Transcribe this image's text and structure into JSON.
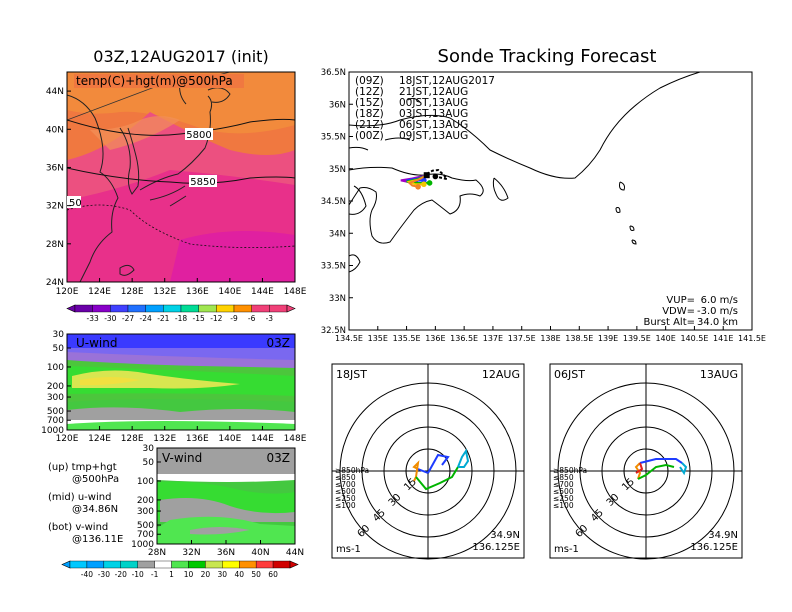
{
  "left": {
    "title": "03Z,12AUG2017 (init)",
    "map": {
      "label": "temp(C)+hgt(m)@500hPa",
      "xticks": [
        "120E",
        "124E",
        "128E",
        "132E",
        "136E",
        "140E",
        "144E",
        "148E"
      ],
      "yticks": [
        "44N",
        "40N",
        "36N",
        "32N",
        "28N",
        "24N"
      ],
      "contours": [
        "5800",
        "5850",
        "50"
      ],
      "colorbar": [
        "-33",
        "-30",
        "-27",
        "-24",
        "-21",
        "-18",
        "-15",
        "-12",
        "-9",
        "-6",
        "-3"
      ]
    },
    "uwind": {
      "label": "U-wind",
      "time": "03Z",
      "yticks": [
        "30",
        "50",
        "100",
        "200",
        "300",
        "500",
        "700",
        "1000"
      ],
      "xticks": [
        "120E",
        "124E",
        "128E",
        "132E",
        "136E",
        "140E",
        "144E",
        "148E"
      ]
    },
    "vwind": {
      "label": "V-wind",
      "time": "03Z",
      "yticks": [
        "30",
        "50",
        "100",
        "200",
        "300",
        "500",
        "700",
        "1000"
      ],
      "xticks": [
        "28N",
        "32N",
        "36N",
        "40N",
        "44N"
      ]
    },
    "notes": [
      {
        "tag": "(up)",
        "line1": "tmp+hgt",
        "line2": "@500hPa"
      },
      {
        "tag": "(mid)",
        "line1": "u-wind",
        "line2": "@34.86N"
      },
      {
        "tag": "(bot)",
        "line1": "v-wind",
        "line2": "@136.11E"
      }
    ],
    "windbar": [
      "-40",
      "-30",
      "-20",
      "-10",
      "-1",
      "1",
      "10",
      "20",
      "30",
      "40",
      "50",
      "60"
    ]
  },
  "right": {
    "title": "Sonde Tracking Forecast",
    "map": {
      "yticks": [
        "36.5N",
        "36N",
        "35.5N",
        "35N",
        "34.5N",
        "34N",
        "33.5N",
        "33N",
        "32.5N"
      ],
      "xticks": [
        "134.5E",
        "135E",
        "135.5E",
        "136E",
        "136.5E",
        "137E",
        "137.5E",
        "138E",
        "138.5E",
        "139E",
        "139.5E",
        "140E",
        "140.5E",
        "141E",
        "141.5E"
      ],
      "legend": [
        {
          "code": "(09Z)",
          "time": "18JST,12AUG2017",
          "color": "#000000"
        },
        {
          "code": "(12Z)",
          "time": "21JST,12AUG",
          "color": "#a000c8"
        },
        {
          "code": "(15Z)",
          "time": "00JST,13AUG",
          "color": "#1e3cff"
        },
        {
          "code": "(18Z)",
          "time": "03JST,13AUG",
          "color": "#00b400"
        },
        {
          "code": "(21Z)",
          "time": "06JST,13AUG",
          "color": "#f0c800"
        },
        {
          "code": "(00Z)",
          "time": "09JST,13AUG",
          "color": "#f08228"
        }
      ],
      "params": [
        {
          "label": "VUP=",
          "value": "6.0 m/s"
        },
        {
          "label": "VDW=",
          "value": "-3.0 m/s"
        },
        {
          "label": "Burst Alt=",
          "value": "34.0 km"
        }
      ]
    },
    "hodo1": {
      "left": "18JST",
      "right": "12AUG",
      "rings": [
        "15",
        "30",
        "45",
        "60"
      ],
      "unit": "ms-1",
      "lat": "34.9N",
      "lon": "136.125E",
      "levels": [
        "≥850hPa",
        "≤850",
        "≤700",
        "≤500",
        "≤250",
        "≤100"
      ]
    },
    "hodo2": {
      "left": "06JST",
      "right": "13AUG",
      "rings": [
        "15",
        "30",
        "45",
        "60"
      ],
      "unit": "ms-1",
      "lat": "34.9N",
      "lon": "136.125E",
      "levels": [
        "≥850hPa",
        "≤850",
        "≤700",
        "≤500",
        "≤250",
        "≤100"
      ]
    }
  },
  "colors": {
    "level_colors": [
      "#e02020",
      "#f08c00",
      "#c8b400",
      "#00b400",
      "#00aad2",
      "#1e3cff"
    ],
    "temp_scale": [
      "#6a00a8",
      "#8800c8",
      "#4040ff",
      "#2070ff",
      "#00a0ff",
      "#00d2e6",
      "#00dc96",
      "#a0e650",
      "#ffd200",
      "#ff9000",
      "#f04078"
    ],
    "wind_scale": [
      "#00a0ff",
      "#00d2e6",
      "#00d2c8",
      "#a0a0a0",
      "#ffffff",
      "#50e650",
      "#00c800",
      "#c8e650",
      "#ffff00",
      "#ff9000",
      "#ff3c3c",
      "#d00000"
    ]
  },
  "chart_data": [
    {
      "type": "heatmap",
      "title": "03Z,12AUG2017 (init)",
      "field": "temp(C)+hgt(m)@500hPa",
      "x_range": [
        "120E",
        "148E"
      ],
      "y_range": [
        "24N",
        "44N"
      ],
      "color_levels": [
        -33,
        -30,
        -27,
        -24,
        -21,
        -18,
        -15,
        -12,
        -9,
        -6,
        -3
      ],
      "contour_labels": [
        5800,
        5850,
        50
      ]
    },
    {
      "type": "heatmap",
      "field": "U-wind",
      "time": "03Z",
      "y_levels_hPa": [
        30,
        50,
        100,
        200,
        300,
        500,
        700,
        1000
      ],
      "x_range": [
        "120E",
        "148E"
      ]
    },
    {
      "type": "heatmap",
      "field": "V-wind",
      "time": "03Z",
      "y_levels_hPa": [
        30,
        50,
        100,
        200,
        300,
        500,
        700,
        1000
      ],
      "x_range": [
        "28N",
        "44N"
      ]
    },
    {
      "type": "line",
      "title": "Sonde Tracking Forecast",
      "xlim": [
        134.5,
        141.5
      ],
      "ylim": [
        32.5,
        36.5
      ],
      "series": [
        {
          "name": "(09Z)",
          "x": [
            135.85,
            135.95,
            136.05,
            136.15,
            136.2,
            136.1,
            136.0
          ],
          "y": [
            34.92,
            34.97,
            34.98,
            34.9,
            34.84,
            34.86,
            34.88
          ]
        },
        {
          "name": "(12Z)",
          "x": [
            135.85,
            135.6,
            135.4,
            135.5,
            135.65
          ],
          "y": [
            34.9,
            34.85,
            34.82,
            34.8,
            34.81
          ]
        },
        {
          "name": "(15Z)",
          "x": [
            135.85,
            135.7,
            135.5,
            135.6,
            135.8
          ],
          "y": [
            34.9,
            34.85,
            34.82,
            34.81,
            34.82
          ]
        },
        {
          "name": "(18Z)",
          "x": [
            135.85,
            135.7,
            135.5,
            135.7,
            135.9
          ],
          "y": [
            34.9,
            34.84,
            34.8,
            34.78,
            34.78
          ]
        },
        {
          "name": "(21Z)",
          "x": [
            135.85,
            135.7,
            135.55,
            135.65,
            135.8
          ],
          "y": [
            34.9,
            34.83,
            34.8,
            34.76,
            34.76
          ]
        },
        {
          "name": "(00Z)",
          "x": [
            135.85,
            135.7,
            135.55,
            135.6,
            135.7
          ],
          "y": [
            34.9,
            34.83,
            34.78,
            34.74,
            34.72
          ]
        }
      ]
    }
  ]
}
